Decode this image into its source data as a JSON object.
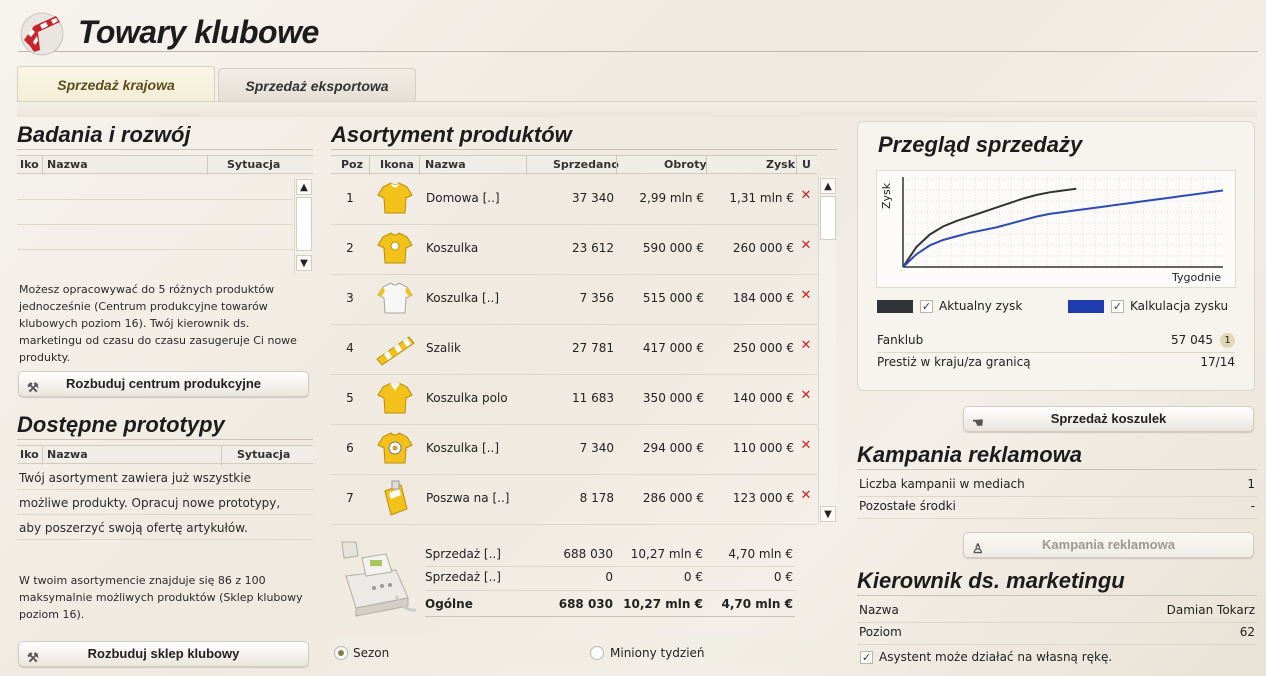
{
  "title": "Towary klubowe",
  "tabs": [
    "Sprzedaż krajowa",
    "Sprzedaż eksportowa"
  ],
  "rnd": {
    "title": "Badania i rozwój",
    "columns": [
      "Iko",
      "Nazwa",
      "Sytuacja"
    ],
    "info": "Możesz opracowywać do 5 różnych produktów jednocześnie (Centrum produkcyjne towarów klubowych poziom 16). Twój kierownik ds. marketingu od czasu do czasu zasugeruje Ci nowe produkty.",
    "button": "Rozbuduj centrum produkcyjne"
  },
  "prototypes": {
    "title": "Dostępne prototypy",
    "columns": [
      "Iko",
      "Nazwa",
      "Sytuacja"
    ],
    "message_lines": [
      "Twój asortyment zawiera już wszystkie",
      "możliwe produkty. Opracuj nowe prototypy,",
      "aby poszerzyć swoją ofertę artykułów."
    ],
    "info": "W twoim asortymencie znajduje się 86 z 100 maksymalnie możliwych produktów (Sklep klubowy poziom 16).",
    "button": "Rozbuduj sklep klubowy"
  },
  "products": {
    "title": "Asortyment produktów",
    "columns": [
      "Poz",
      "Ikona",
      "Nazwa",
      "Sprzedano",
      "Obroty",
      "Zysk",
      "U"
    ],
    "rows": [
      {
        "pos": "1",
        "name": "Domowa [..]",
        "sold": "37 340",
        "revenue": "2,99 mln €",
        "profit": "1,31 mln €",
        "icon": "white-yellow-shirt-icon"
      },
      {
        "pos": "2",
        "name": "Koszulka",
        "sold": "23 612",
        "revenue": "590 000 €",
        "profit": "260 000 €",
        "icon": "yellow-shirt-icon"
      },
      {
        "pos": "3",
        "name": "Koszulka [..]",
        "sold": "7 356",
        "revenue": "515 000 €",
        "profit": "184 000 €",
        "icon": "white-shirt-icon"
      },
      {
        "pos": "4",
        "name": "Szalik",
        "sold": "27 781",
        "revenue": "417 000 €",
        "profit": "250 000 €",
        "icon": "scarf-icon"
      },
      {
        "pos": "5",
        "name": "Koszulka polo",
        "sold": "11 683",
        "revenue": "350 000 €",
        "profit": "140 000 €",
        "icon": "polo-shirt-icon"
      },
      {
        "pos": "6",
        "name": "Koszulka [..]",
        "sold": "7 340",
        "revenue": "294 000 €",
        "profit": "110 000 €",
        "icon": "logo-shirt-icon"
      },
      {
        "pos": "7",
        "name": "Poszwa na [..]",
        "sold": "8 178",
        "revenue": "286 000 €",
        "profit": "123 000 €",
        "icon": "duvet-cover-icon"
      }
    ],
    "delete_glyph": "✕",
    "summary": [
      {
        "label": "Sprzedaż [..]",
        "sold": "688 030",
        "revenue": "10,27 mln €",
        "profit": "4,70 mln €"
      },
      {
        "label": "Sprzedaż [..]",
        "sold": "0",
        "revenue": "0 €",
        "profit": "0 €"
      },
      {
        "label": "Ogólne",
        "sold": "688 030",
        "revenue": "10,27 mln €",
        "profit": "4,70 mln €"
      }
    ],
    "period_options": [
      "Sezon",
      "Miniony tydzień"
    ],
    "period_selected": "Sezon"
  },
  "sales_overview": {
    "title": "Przegląd sprzedaży",
    "chart_data": {
      "type": "line",
      "xlabel": "Tygodnie",
      "ylabel": "Zysk",
      "series": [
        {
          "name": "Aktualny zysk",
          "color": "#333333",
          "values": [
            0,
            0.22,
            0.36,
            0.45,
            0.51,
            0.56,
            0.61,
            0.66,
            0.71,
            0.76,
            0.8,
            0.83,
            0.85,
            0.87
          ]
        },
        {
          "name": "Kalkulacja zysku",
          "color": "#2c4bb8",
          "values": [
            0,
            0.14,
            0.24,
            0.3,
            0.34,
            0.38,
            0.41,
            0.44,
            0.48,
            0.52,
            0.56,
            0.59,
            0.61,
            0.63,
            0.65,
            0.67,
            0.69,
            0.71,
            0.73,
            0.75,
            0.77,
            0.79,
            0.81,
            0.83,
            0.85
          ]
        }
      ]
    },
    "legend": [
      {
        "label": "Aktualny zysk",
        "color": "#2e3438"
      },
      {
        "label": "Kalkulacja zysku",
        "color": "#1f3db0"
      }
    ],
    "fanclub_label": "Fanklub",
    "fanclub_value": "57 045",
    "fanclub_badge": "1",
    "prestige_label": "Prestiż w kraju/za granicą",
    "prestige_value": "17/14",
    "button": "Sprzedaż koszulek"
  },
  "campaign": {
    "title": "Kampania reklamowa",
    "rows": [
      {
        "label": "Liczba kampanii w mediach",
        "value": "1"
      },
      {
        "label": "Pozostałe środki",
        "value": "-"
      }
    ],
    "button": "Kampania reklamowa"
  },
  "manager": {
    "title": "Kierownik ds. marketingu",
    "rows": [
      {
        "label": "Nazwa",
        "value": "Damian Tokarz"
      },
      {
        "label": "Poziom",
        "value": "62"
      }
    ],
    "assistant_label": "Asystent może działać na własną rękę."
  }
}
